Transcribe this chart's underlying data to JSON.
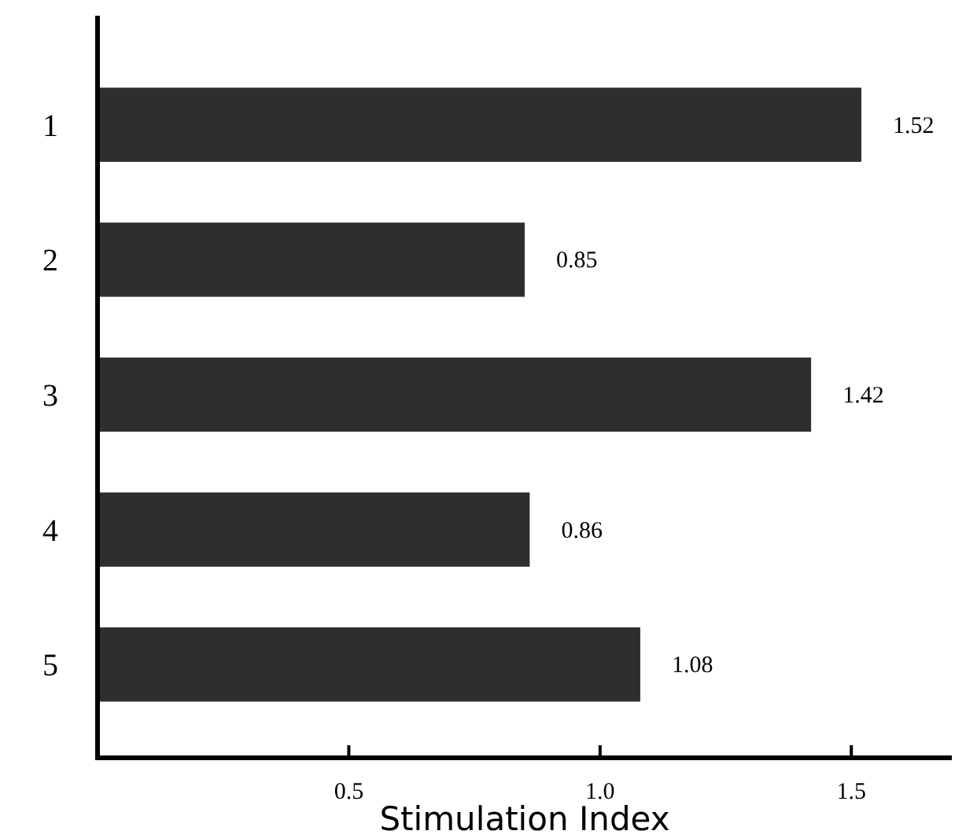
{
  "chart_data": {
    "type": "bar",
    "orientation": "horizontal",
    "xlabel": "Stimulation Index",
    "categories": [
      "1",
      "2",
      "3",
      "4",
      "5"
    ],
    "values": [
      1.52,
      0.85,
      1.42,
      0.86,
      1.08
    ],
    "data_labels": true,
    "color": "#2e2e2e",
    "xlim": [
      0,
      1.7
    ],
    "xticks": [
      0.5,
      {
        "value": 1.0,
        "label": "1.0"
      },
      1.5
    ],
    "grid": false
  }
}
